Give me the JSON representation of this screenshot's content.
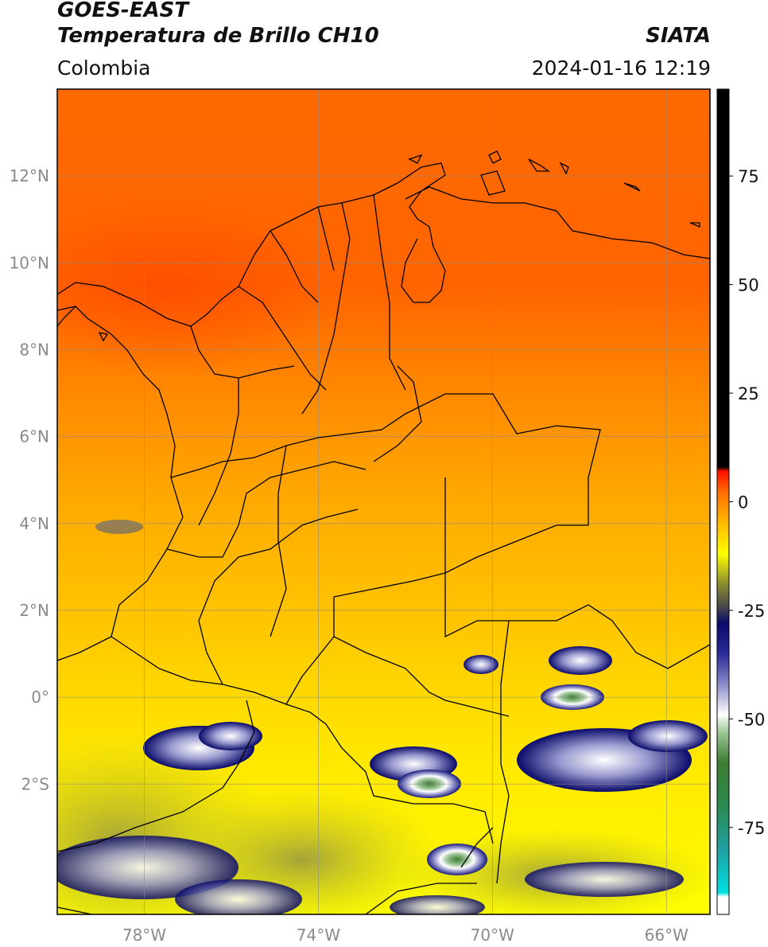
{
  "header": {
    "satellite": "GOES-EAST",
    "product": "Temperatura de Brillo CH10",
    "brand": "SIATA",
    "region": "Colombia",
    "timestamp": "2024-01-16 12:19"
  },
  "map": {
    "lon_range": [
      -80,
      -65
    ],
    "lat_range": [
      -5,
      14
    ],
    "lat_ticks": [
      {
        "value": 12,
        "label": "12°N"
      },
      {
        "value": 10,
        "label": "10°N"
      },
      {
        "value": 8,
        "label": "8°N"
      },
      {
        "value": 6,
        "label": "6°N"
      },
      {
        "value": 4,
        "label": "4°N"
      },
      {
        "value": 2,
        "label": "2°N"
      },
      {
        "value": 0,
        "label": "0°"
      },
      {
        "value": -2,
        "label": "2°S"
      }
    ],
    "lon_ticks": [
      {
        "value": -78,
        "label": "78°W"
      },
      {
        "value": -74,
        "label": "74°W"
      },
      {
        "value": -70,
        "label": "70°W"
      },
      {
        "value": -66,
        "label": "66°W"
      }
    ]
  },
  "colorbar": {
    "range": [
      -95,
      95
    ],
    "ticks": [
      {
        "value": 75,
        "label": "75"
      },
      {
        "value": 50,
        "label": "50"
      },
      {
        "value": 25,
        "label": "25"
      },
      {
        "value": 0,
        "label": "0"
      },
      {
        "value": -25,
        "label": "-25"
      },
      {
        "value": -50,
        "label": "-50"
      },
      {
        "value": -75,
        "label": "-75"
      }
    ],
    "stops": [
      {
        "value": -95,
        "color": "#ffffff"
      },
      {
        "value": -91,
        "color": "#ffffff"
      },
      {
        "value": -90,
        "color": "#00e0e0"
      },
      {
        "value": -80,
        "color": "#20a0a0"
      },
      {
        "value": -70,
        "color": "#2a8a50"
      },
      {
        "value": -60,
        "color": "#3c7c30"
      },
      {
        "value": -53,
        "color": "#9fc79a"
      },
      {
        "value": -49,
        "color": "#ffffff"
      },
      {
        "value": -42,
        "color": "#8a8ac8"
      },
      {
        "value": -35,
        "color": "#2a2a9a"
      },
      {
        "value": -28,
        "color": "#0a0a6a"
      },
      {
        "value": -24,
        "color": "#4a4a4a"
      },
      {
        "value": -19,
        "color": "#8a8a30"
      },
      {
        "value": -12,
        "color": "#ffff00"
      },
      {
        "value": -4,
        "color": "#ffb000"
      },
      {
        "value": 2,
        "color": "#ff7000"
      },
      {
        "value": 7,
        "color": "#ff1000"
      },
      {
        "value": 8,
        "color": "#000000"
      },
      {
        "value": 95,
        "color": "#000000"
      }
    ]
  }
}
